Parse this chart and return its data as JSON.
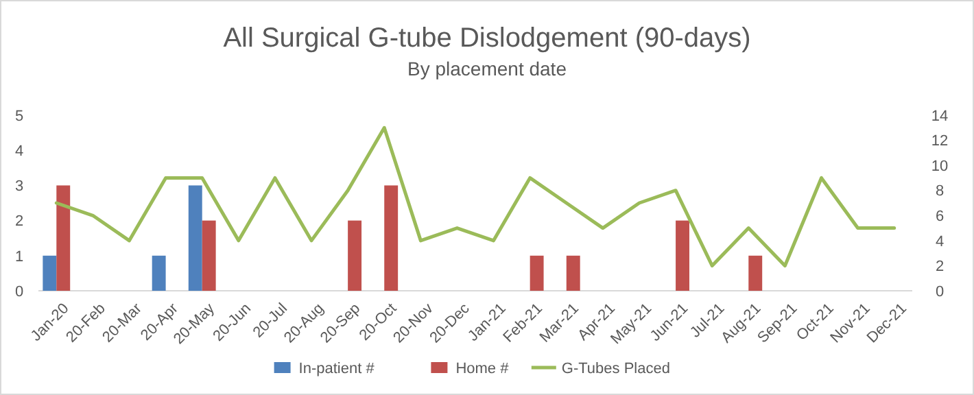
{
  "chart_data": {
    "type": "bar",
    "title": "All Surgical G-tube Dislodgement (90-days)",
    "subtitle": "By placement date",
    "categories": [
      "Jan-20",
      "20-Feb",
      "20-Mar",
      "20-Apr",
      "20-May",
      "20-Jun",
      "20-Jul",
      "20-Aug",
      "20-Sep",
      "20-Oct",
      "20-Nov",
      "20-Dec",
      "Jan-21",
      "Feb-21",
      "Mar-21",
      "Apr-21",
      "May-21",
      "Jun-21",
      "Jul-21",
      "Aug-21",
      "Sep-21",
      "Oct-21",
      "Nov-21",
      "Dec-21"
    ],
    "series": [
      {
        "name": "In-patient #",
        "color": "#4f81bd",
        "values": [
          1,
          0,
          0,
          1,
          3,
          0,
          0,
          0,
          0,
          0,
          0,
          0,
          0,
          0,
          0,
          0,
          0,
          0,
          0,
          0,
          0,
          0,
          0,
          0
        ]
      },
      {
        "name": "Home #",
        "color": "#c0504d",
        "values": [
          3,
          0,
          0,
          0,
          2,
          0,
          0,
          0,
          2,
          3,
          0,
          0,
          0,
          1,
          1,
          0,
          0,
          2,
          0,
          1,
          0,
          0,
          0,
          0
        ]
      },
      {
        "name": "G-Tubes Placed",
        "type": "line",
        "axis": "y2",
        "color": "#9bbb59",
        "values": [
          7,
          6,
          4,
          9,
          9,
          4,
          9,
          4,
          8,
          13,
          4,
          5,
          4,
          9,
          7,
          5,
          7,
          8,
          2,
          5,
          2,
          9,
          5,
          5
        ]
      }
    ],
    "ylim": [
      0,
      5
    ],
    "yticks": [
      0,
      1,
      2,
      3,
      4,
      5
    ],
    "y2lim": [
      0,
      14
    ],
    "y2ticks": [
      0,
      2,
      4,
      6,
      8,
      10,
      12,
      14
    ],
    "grid": false,
    "legend": "bottom"
  }
}
